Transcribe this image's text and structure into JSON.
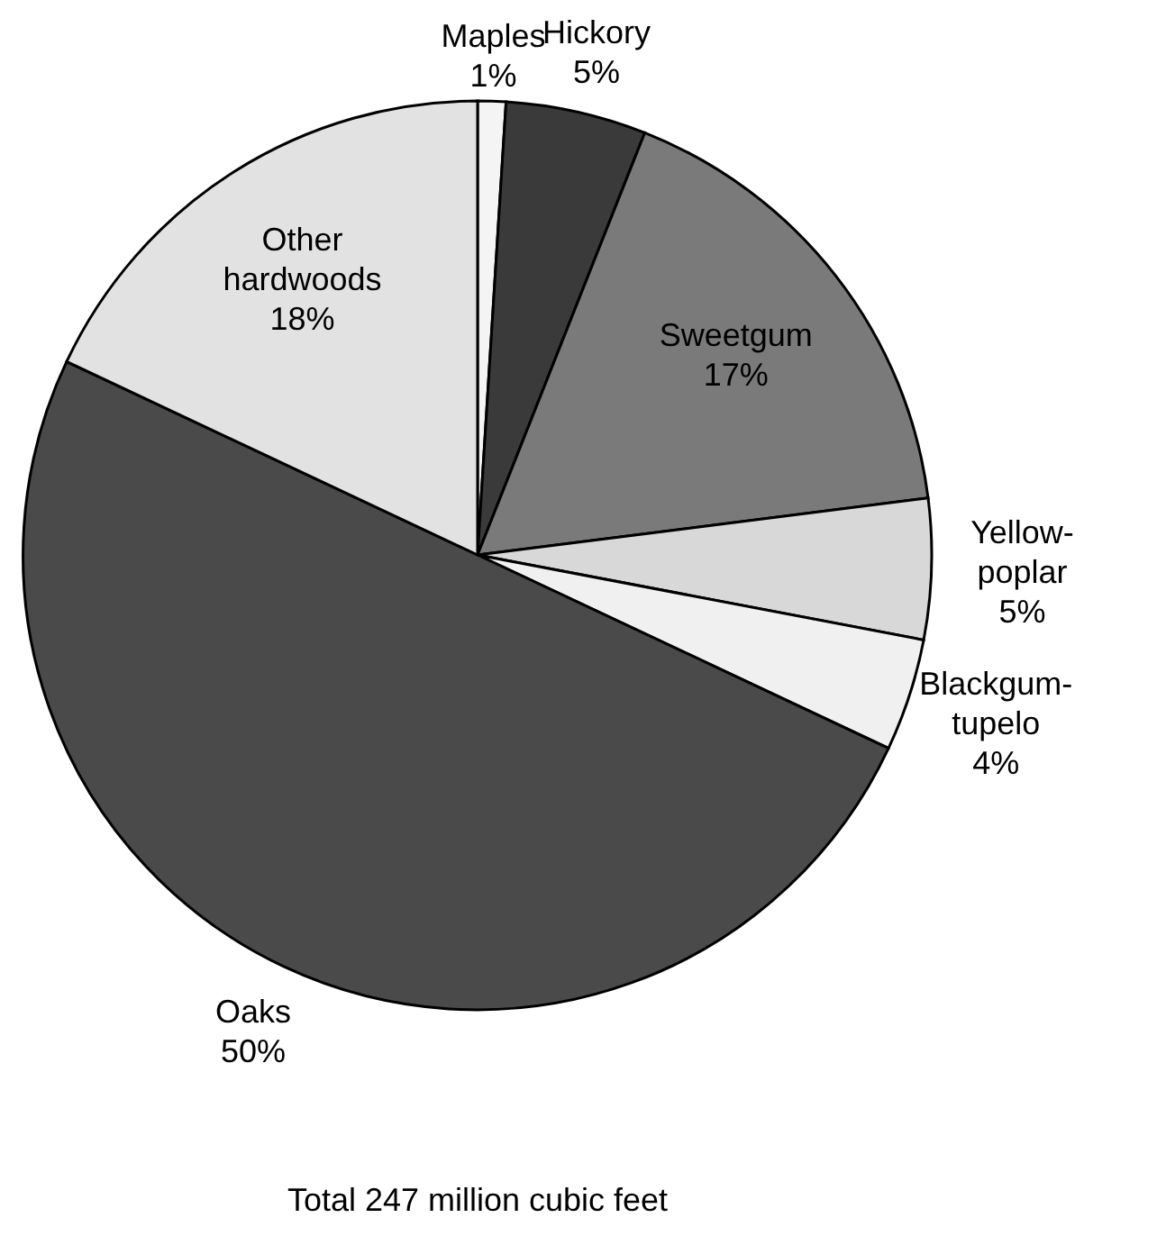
{
  "chart_data": {
    "type": "pie",
    "categories": [
      "Maples",
      "Hickory",
      "Sweetgum",
      "Yellow-poplar",
      "Blackgum-tupelo",
      "Oaks",
      "Other hardwoods"
    ],
    "values": [
      1,
      5,
      17,
      5,
      4,
      50,
      18
    ],
    "colors": [
      "#f4f4f4",
      "#3a3a3a",
      "#7a7a7a",
      "#d8d8d8",
      "#f0f0f0",
      "#4a4a4a",
      "#e2e2e2"
    ],
    "value_labels": [
      "1%",
      "5%",
      "17%",
      "5%",
      "4%",
      "50%",
      "18%"
    ],
    "annotations": [
      "Total 247 million cubic feet"
    ]
  }
}
